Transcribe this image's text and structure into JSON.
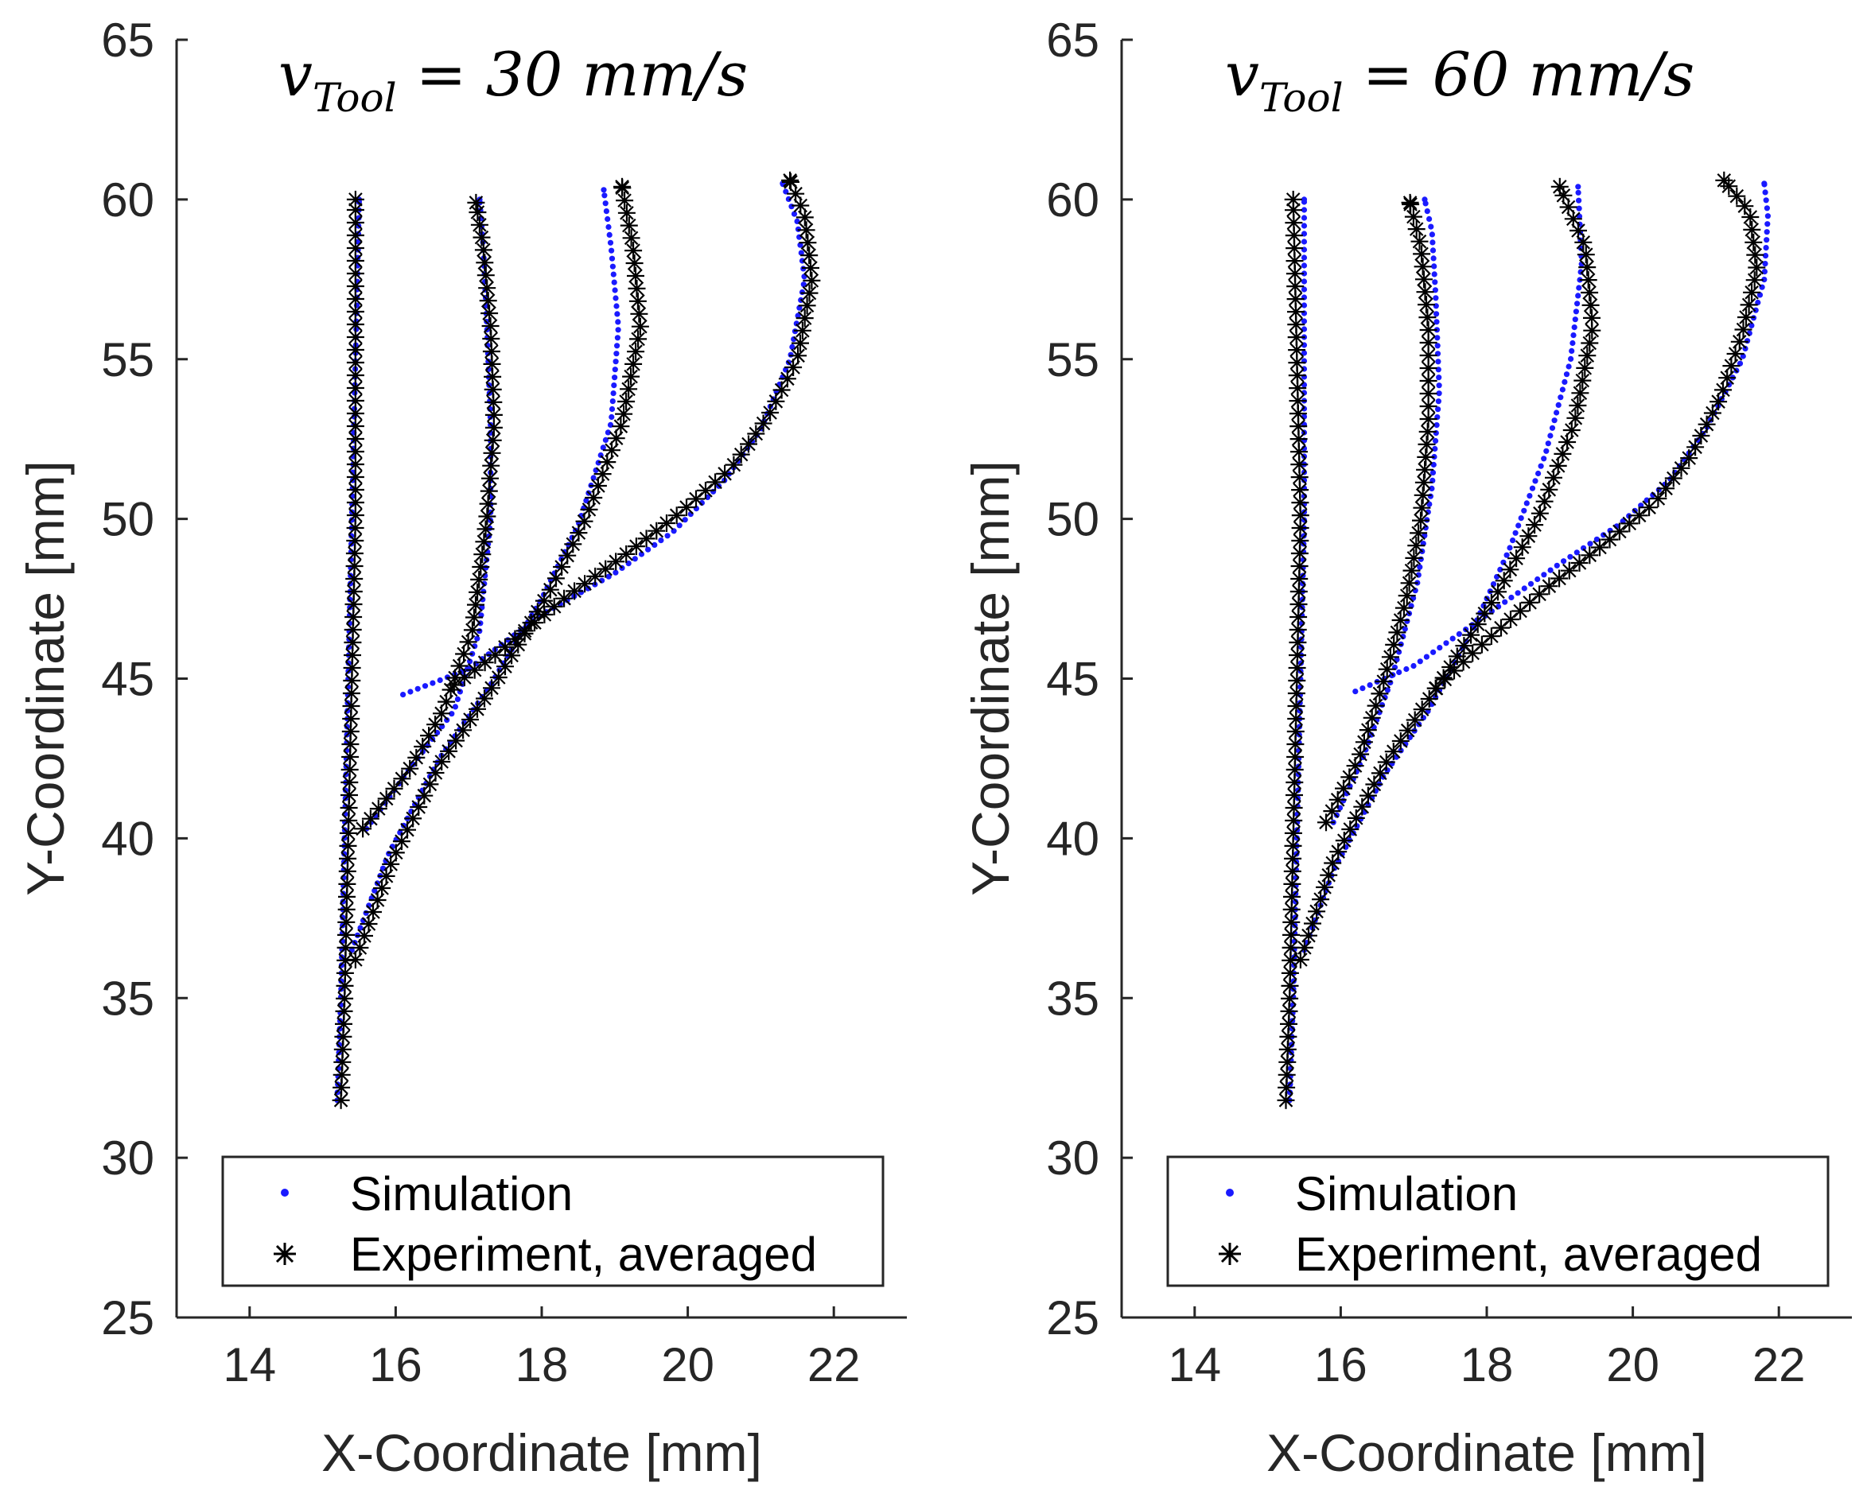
{
  "figure": {
    "legend": {
      "simulation_label": "Simulation",
      "experiment_label": "Experiment, averaged"
    },
    "colors": {
      "simulation": "#1a1aff",
      "experiment": "#000000",
      "axis": "#262626"
    }
  },
  "chart_data": [
    {
      "type": "scatter",
      "title": {
        "var": "v",
        "sub": "Tool",
        "rest": " = 30 mm/s"
      },
      "title_text": "v_Tool = 30 mm/s",
      "xlabel": "X-Coordinate [mm]",
      "ylabel": "Y-Coordinate [mm]",
      "xlim": [
        13,
        23
      ],
      "ylim": [
        25,
        65
      ],
      "xticks": [
        14,
        16,
        18,
        20,
        22
      ],
      "yticks": [
        25,
        30,
        35,
        40,
        45,
        50,
        55,
        60,
        65
      ],
      "legend_position": "bottom",
      "series": [
        {
          "name": "Simulation",
          "marker": "dot",
          "curves": [
            [
              [
                15.2,
                31.8
              ],
              [
                15.25,
                35
              ],
              [
                15.3,
                40
              ],
              [
                15.35,
                45
              ],
              [
                15.4,
                50
              ],
              [
                15.45,
                55
              ],
              [
                15.5,
                60
              ]
            ],
            [
              [
                15.6,
                40.3
              ],
              [
                16.2,
                42.2
              ],
              [
                16.8,
                44.0
              ],
              [
                17.15,
                46.5
              ],
              [
                17.3,
                50
              ],
              [
                17.3,
                53
              ],
              [
                17.25,
                56
              ],
              [
                17.2,
                58.5
              ],
              [
                17.15,
                60
              ]
            ],
            [
              [
                15.4,
                36.5
              ],
              [
                15.9,
                39.5
              ],
              [
                16.6,
                42.5
              ],
              [
                17.3,
                44.8
              ],
              [
                18.0,
                47.5
              ],
              [
                18.5,
                49.8
              ],
              [
                18.95,
                53
              ],
              [
                19.05,
                56
              ],
              [
                18.95,
                58.5
              ],
              [
                18.85,
                60.3
              ]
            ],
            [
              [
                16.1,
                44.5
              ],
              [
                17.0,
                45.3
              ],
              [
                18.0,
                47.0
              ],
              [
                19.0,
                48.3
              ],
              [
                19.8,
                49.6
              ],
              [
                20.5,
                51.2
              ],
              [
                21.0,
                52.8
              ],
              [
                21.4,
                55
              ],
              [
                21.6,
                57.5
              ],
              [
                21.5,
                59.3
              ],
              [
                21.3,
                60.5
              ]
            ]
          ]
        },
        {
          "name": "Experiment, averaged",
          "marker": "asterisk",
          "curves": [
            [
              [
                15.25,
                31.8
              ],
              [
                15.3,
                35
              ],
              [
                15.35,
                40
              ],
              [
                15.4,
                45
              ],
              [
                15.45,
                50
              ],
              [
                15.45,
                55
              ],
              [
                15.45,
                60
              ]
            ],
            [
              [
                15.55,
                40.3
              ],
              [
                16.2,
                42.2
              ],
              [
                16.65,
                44.0
              ],
              [
                17.05,
                46.5
              ],
              [
                17.25,
                50
              ],
              [
                17.35,
                53
              ],
              [
                17.3,
                56
              ],
              [
                17.2,
                58.5
              ],
              [
                17.1,
                59.9
              ]
            ],
            [
              [
                15.45,
                36.2
              ],
              [
                15.95,
                39.3
              ],
              [
                16.6,
                42.3
              ],
              [
                17.4,
                45.0
              ],
              [
                18.1,
                47.7
              ],
              [
                18.6,
                50
              ],
              [
                19.1,
                53
              ],
              [
                19.35,
                56
              ],
              [
                19.25,
                58.5
              ],
              [
                19.1,
                60.4
              ]
            ],
            [
              [
                16.8,
                44.8
              ],
              [
                17.4,
                45.8
              ],
              [
                18.3,
                47.5
              ],
              [
                19.1,
                48.8
              ],
              [
                19.9,
                50.2
              ],
              [
                20.6,
                51.6
              ],
              [
                21.1,
                53.2
              ],
              [
                21.5,
                55
              ],
              [
                21.7,
                57.5
              ],
              [
                21.6,
                59.5
              ],
              [
                21.4,
                60.6
              ]
            ]
          ]
        }
      ]
    },
    {
      "type": "scatter",
      "title": {
        "var": "v",
        "sub": "Tool",
        "rest": " = 60 mm/s"
      },
      "title_text": "v_Tool = 60 mm/s",
      "xlabel": "X-Coordinate [mm]",
      "ylabel": "Y-Coordinate [mm]",
      "xlim": [
        13,
        23
      ],
      "ylim": [
        25,
        65
      ],
      "xticks": [
        14,
        16,
        18,
        20,
        22
      ],
      "yticks": [
        25,
        30,
        35,
        40,
        45,
        50,
        55,
        60,
        65
      ],
      "legend_position": "bottom",
      "series": [
        {
          "name": "Simulation",
          "marker": "dot",
          "curves": [
            [
              [
                15.3,
                31.8
              ],
              [
                15.35,
                35
              ],
              [
                15.4,
                40
              ],
              [
                15.45,
                45
              ],
              [
                15.5,
                50
              ],
              [
                15.5,
                55
              ],
              [
                15.5,
                60
              ]
            ],
            [
              [
                15.9,
                40.5
              ],
              [
                16.3,
                42.5
              ],
              [
                16.7,
                45.0
              ],
              [
                17.05,
                48
              ],
              [
                17.25,
                51
              ],
              [
                17.35,
                54
              ],
              [
                17.3,
                57
              ],
              [
                17.25,
                59
              ],
              [
                17.15,
                60
              ]
            ],
            [
              [
                15.5,
                36.5
              ],
              [
                15.9,
                39.0
              ],
              [
                16.6,
                42.0
              ],
              [
                17.2,
                44.0
              ],
              [
                17.8,
                46.5
              ],
              [
                18.3,
                49
              ],
              [
                18.8,
                52
              ],
              [
                19.15,
                55
              ],
              [
                19.3,
                58
              ],
              [
                19.25,
                60.4
              ]
            ],
            [
              [
                16.2,
                44.6
              ],
              [
                17.0,
                45.4
              ],
              [
                18.0,
                47.0
              ],
              [
                19.0,
                48.6
              ],
              [
                19.8,
                49.8
              ],
              [
                20.5,
                51.2
              ],
              [
                21.0,
                52.8
              ],
              [
                21.5,
                55
              ],
              [
                21.8,
                57.5
              ],
              [
                21.85,
                59.5
              ],
              [
                21.8,
                60.5
              ]
            ]
          ]
        },
        {
          "name": "Experiment, averaged",
          "marker": "asterisk",
          "curves": [
            [
              [
                15.25,
                31.8
              ],
              [
                15.3,
                35
              ],
              [
                15.35,
                40
              ],
              [
                15.4,
                45
              ],
              [
                15.45,
                50
              ],
              [
                15.4,
                55
              ],
              [
                15.35,
                60
              ]
            ],
            [
              [
                15.8,
                40.5
              ],
              [
                16.25,
                42.5
              ],
              [
                16.6,
                45.0
              ],
              [
                16.9,
                47.5
              ],
              [
                17.1,
                50
              ],
              [
                17.2,
                53
              ],
              [
                17.2,
                56
              ],
              [
                17.1,
                58.5
              ],
              [
                16.95,
                59.9
              ]
            ],
            [
              [
                15.45,
                36.2
              ],
              [
                15.9,
                39.3
              ],
              [
                16.6,
                42.3
              ],
              [
                17.4,
                45.0
              ],
              [
                18.1,
                47.5
              ],
              [
                18.7,
                50
              ],
              [
                19.2,
                53
              ],
              [
                19.45,
                56
              ],
              [
                19.35,
                58.5
              ],
              [
                19.0,
                60.4
              ]
            ],
            [
              [
                17.3,
                44.7
              ],
              [
                17.9,
                46.0
              ],
              [
                18.8,
                47.8
              ],
              [
                19.6,
                49.2
              ],
              [
                20.3,
                50.5
              ],
              [
                20.8,
                52
              ],
              [
                21.2,
                53.8
              ],
              [
                21.5,
                55.8
              ],
              [
                21.7,
                57.8
              ],
              [
                21.6,
                59.6
              ],
              [
                21.25,
                60.6
              ]
            ]
          ]
        }
      ]
    }
  ]
}
